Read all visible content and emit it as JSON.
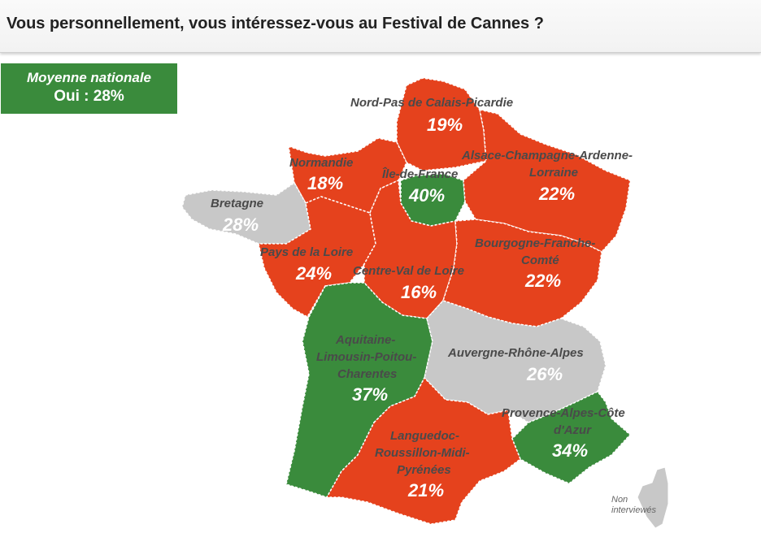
{
  "title": "Vous personnellement, vous intéressez-vous au Festival de Cannes ?",
  "badge": {
    "line1": "Moyenne nationale",
    "line2": "Oui : 28%"
  },
  "colors": {
    "high": "#3a8b3c",
    "low": "#e5421d",
    "average": "#c8c8c8"
  },
  "regions": {
    "npdc": {
      "name": "Nord-Pas de Calais-Picardie",
      "value": "19%"
    },
    "acal": {
      "name_l1": "Alsace-Champagne-Ardenne-",
      "name_l2": "Lorraine",
      "value": "22%"
    },
    "norm": {
      "name": "Normandie",
      "value": "18%"
    },
    "idf": {
      "name": "Île-de-France",
      "value": "40%"
    },
    "bret": {
      "name": "Bretagne",
      "value": "28%"
    },
    "pdl": {
      "name": "Pays de la Loire",
      "value": "24%"
    },
    "cvl": {
      "name": "Centre-Val de Loire",
      "value": "16%"
    },
    "bfc": {
      "name_l1": "Bourgogne-Franche-",
      "name_l2": "Comté",
      "value": "22%"
    },
    "alpc": {
      "name_l1": "Aquitaine-",
      "name_l2": "Limousin-Poitou-",
      "name_l3": "Charentes",
      "value": "37%"
    },
    "ara": {
      "name": "Auvergne-Rhône-Alpes",
      "value": "26%"
    },
    "paca": {
      "name_l1": "Provence-Alpes-Côte",
      "name_l2": "d'Azur",
      "value": "34%"
    },
    "lrmp": {
      "name_l1": "Languedoc-",
      "name_l2": "Roussillon-Midi-",
      "name_l3": "Pyrénées",
      "value": "21%"
    }
  },
  "note": {
    "line1": "Non",
    "line2": "interviewés"
  }
}
